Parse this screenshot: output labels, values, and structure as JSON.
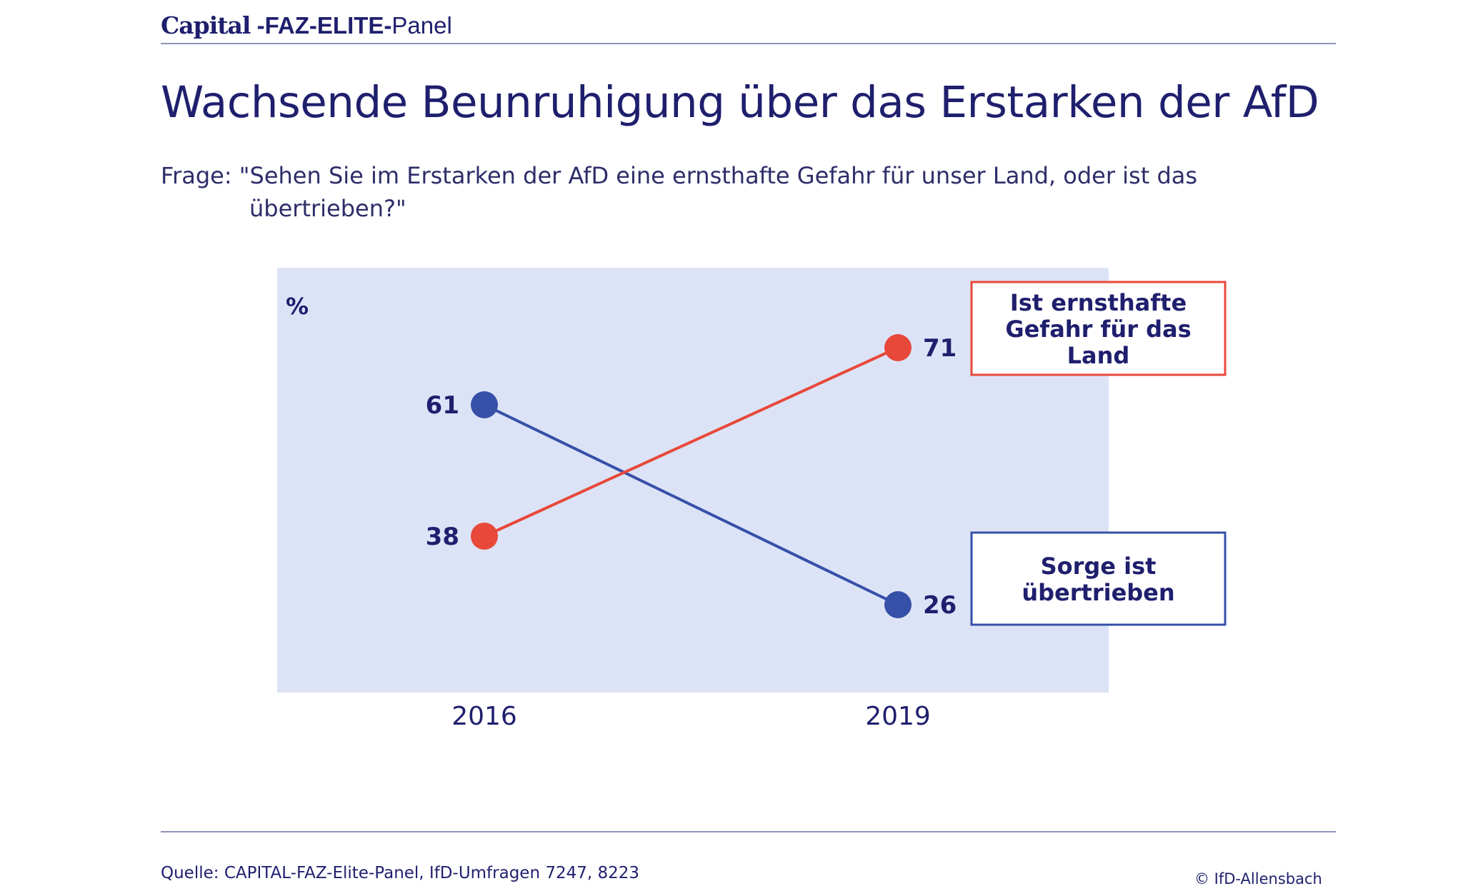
{
  "header": {
    "brand_capital": "Capital",
    "brand_faz": " -FAZ-ELITE-",
    "brand_panel": "Panel",
    "title": "Wachsende Beunruhigung über das Erstarken der AfD",
    "question": "Frage: \"Sehen Sie im Erstarken der AfD eine ernsthafte Gefahr für unser Land, oder ist das übertrieben?\""
  },
  "footer": {
    "source": "Quelle: CAPITAL-FAZ-Elite-Panel, IfD-Umfragen 7247, 8223",
    "copyright": "© IfD-Allensbach"
  },
  "colors": {
    "panel_bg": "#dde3f7",
    "danger_series": "#e8483a",
    "exaggerated_series": "#3650a8",
    "label_text": "#1f1f6e"
  },
  "chart_data": {
    "type": "line",
    "unit_label": "%",
    "x": [
      "2016",
      "2019"
    ],
    "series": [
      {
        "name": "Ist ernsthafte Gefahr für das Land",
        "values": [
          38,
          71
        ],
        "color": "#e8483a"
      },
      {
        "name": "Sorge ist übertrieben",
        "values": [
          61,
          26
        ],
        "color": "#3650a8"
      }
    ],
    "ylim": [
      0,
      100
    ],
    "grid": false,
    "legend": "right"
  }
}
